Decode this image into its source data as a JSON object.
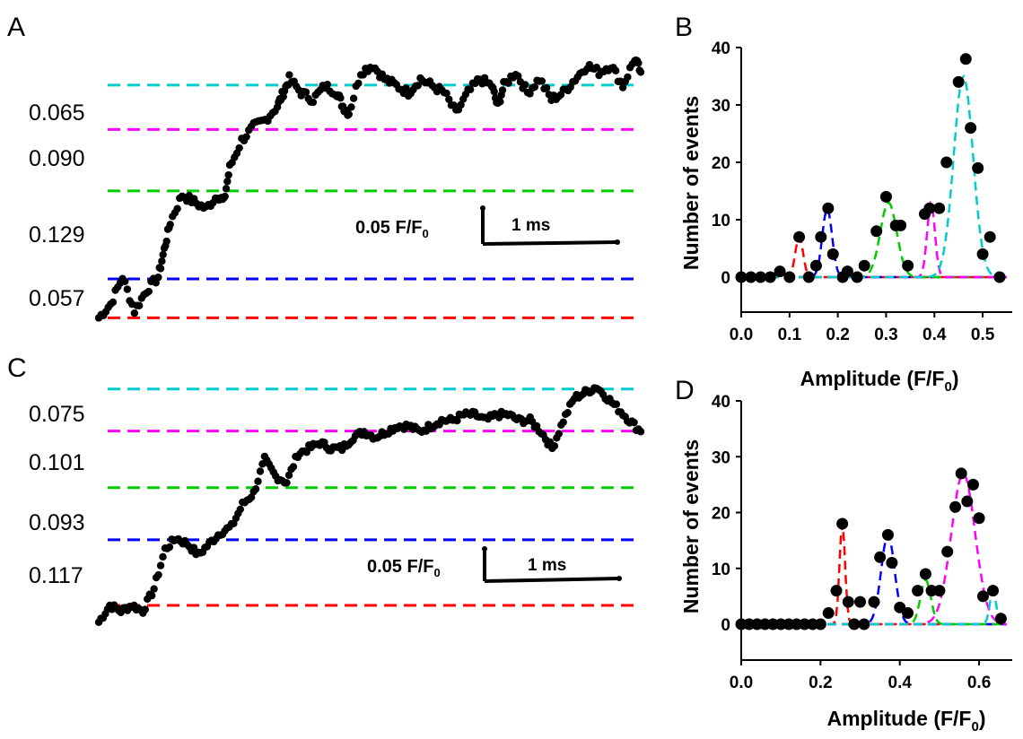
{
  "colors": {
    "red": "#ff0000",
    "blue": "#0000ff",
    "green": "#00cc00",
    "magenta": "#ff00ff",
    "cyan": "#00cccc",
    "dot": "#000000"
  },
  "panels": {
    "A": "A",
    "B": "B",
    "C": "C",
    "D": "D"
  },
  "chart_data": [
    {
      "panel": "A",
      "type": "scatter",
      "description_free": true,
      "step_levels": [
        {
          "color": "red",
          "y": 0.0
        },
        {
          "color": "blue",
          "y": 0.057
        },
        {
          "color": "green",
          "y": 0.186
        },
        {
          "color": "magenta",
          "y": 0.276
        },
        {
          "color": "cyan",
          "y": 0.341
        }
      ],
      "step_labels": [
        "0.057",
        "0.129",
        "0.090",
        "0.065"
      ],
      "scale_bar": {
        "y_label_main": "0.05 F/F",
        "y_label_sub": "0",
        "x_label": "1 ms"
      },
      "x": [
        0,
        0.1,
        0.2,
        0.3,
        0.4,
        0.5,
        0.55,
        0.6,
        0.7,
        0.8,
        0.9,
        1.0,
        1.05,
        1.1,
        1.2,
        1.3,
        1.4,
        1.5,
        1.55,
        1.6,
        1.7,
        1.8,
        1.9,
        2.0,
        2.05,
        2.1,
        2.2,
        2.3,
        2.4,
        2.5,
        2.6,
        2.7,
        2.8,
        2.9,
        3.0,
        3.1,
        3.2,
        3.3,
        3.35,
        3.4,
        3.5,
        3.6,
        3.7,
        3.8,
        3.9,
        4.0,
        4.1,
        4.2,
        4.3,
        4.4,
        4.5,
        4.55
      ],
      "y": [
        0.0,
        0.02,
        0.06,
        0.01,
        0.04,
        0.06,
        0.1,
        0.14,
        0.18,
        0.17,
        0.16,
        0.18,
        0.17,
        0.22,
        0.26,
        0.28,
        0.29,
        0.31,
        0.33,
        0.35,
        0.33,
        0.32,
        0.34,
        0.33,
        0.31,
        0.3,
        0.36,
        0.37,
        0.35,
        0.34,
        0.33,
        0.35,
        0.34,
        0.33,
        0.3,
        0.33,
        0.35,
        0.34,
        0.31,
        0.34,
        0.36,
        0.33,
        0.35,
        0.32,
        0.33,
        0.35,
        0.37,
        0.36,
        0.37,
        0.34,
        0.38,
        0.36
      ],
      "ylim": [
        -0.01,
        0.4
      ]
    },
    {
      "panel": "B",
      "type": "scatter",
      "xlabel": "Amplitude (F/F",
      "xlabel_sub": "0",
      "xlabel_close": ")",
      "ylabel": "Number of events",
      "xlim": [
        0,
        0.55
      ],
      "ylim": [
        0,
        40
      ],
      "xticks": [
        "0.0",
        "0.1",
        "0.2",
        "0.3",
        "0.4",
        "0.5"
      ],
      "yticks": [
        "0",
        "10",
        "20",
        "30",
        "40"
      ],
      "points": [
        [
          0,
          0
        ],
        [
          0.02,
          0
        ],
        [
          0.04,
          0
        ],
        [
          0.06,
          0
        ],
        [
          0.08,
          1
        ],
        [
          0.1,
          0
        ],
        [
          0.12,
          7
        ],
        [
          0.14,
          0
        ],
        [
          0.155,
          2
        ],
        [
          0.165,
          7
        ],
        [
          0.18,
          12
        ],
        [
          0.19,
          4
        ],
        [
          0.21,
          0
        ],
        [
          0.22,
          1
        ],
        [
          0.24,
          0
        ],
        [
          0.255,
          2
        ],
        [
          0.28,
          8
        ],
        [
          0.3,
          14
        ],
        [
          0.32,
          9
        ],
        [
          0.33,
          9
        ],
        [
          0.345,
          2
        ],
        [
          0.38,
          11
        ],
        [
          0.39,
          12
        ],
        [
          0.41,
          12
        ],
        [
          0.425,
          20
        ],
        [
          0.45,
          34
        ],
        [
          0.465,
          38
        ],
        [
          0.475,
          26
        ],
        [
          0.49,
          19
        ],
        [
          0.5,
          4
        ],
        [
          0.515,
          7
        ],
        [
          0.535,
          0
        ]
      ],
      "fits": [
        {
          "color": "red",
          "mu": 0.12,
          "sigma": 0.008,
          "amp": 7
        },
        {
          "color": "blue",
          "mu": 0.178,
          "sigma": 0.01,
          "amp": 12
        },
        {
          "color": "green",
          "mu": 0.305,
          "sigma": 0.017,
          "amp": 13
        },
        {
          "color": "magenta",
          "mu": 0.393,
          "sigma": 0.008,
          "amp": 13
        },
        {
          "color": "cyan",
          "mu": 0.46,
          "sigma": 0.02,
          "amp": 35
        }
      ]
    },
    {
      "panel": "C",
      "type": "scatter",
      "step_levels": [
        {
          "color": "red",
          "y": 0.0
        },
        {
          "color": "blue",
          "y": 0.117
        },
        {
          "color": "green",
          "y": 0.21
        },
        {
          "color": "magenta",
          "y": 0.311
        },
        {
          "color": "cyan",
          "y": 0.386
        }
      ],
      "step_labels": [
        "0.117",
        "0.093",
        "0.101",
        "0.075"
      ],
      "scale_bar": {
        "y_label_main": "0.05 F/F",
        "y_label_sub": "0",
        "x_label": "1 ms"
      },
      "x": [
        0,
        0.1,
        0.2,
        0.3,
        0.4,
        0.5,
        0.6,
        0.7,
        0.8,
        0.9,
        1.0,
        1.1,
        1.2,
        1.3,
        1.4,
        1.5,
        1.6,
        1.7,
        1.8,
        1.9,
        2.0,
        2.1,
        2.2,
        2.3,
        2.4,
        2.5,
        2.6,
        2.7,
        2.8,
        2.9,
        3.0,
        3.1,
        3.2,
        3.3,
        3.4,
        3.5,
        3.6,
        3.7,
        3.8,
        3.9,
        4.0,
        4.1,
        4.2,
        4.3,
        4.4,
        4.5,
        4.6,
        4.7,
        4.8,
        4.9
      ],
      "y": [
        -0.03,
        0.0,
        -0.01,
        0.0,
        -0.01,
        0.03,
        0.1,
        0.12,
        0.11,
        0.09,
        0.11,
        0.13,
        0.14,
        0.18,
        0.2,
        0.26,
        0.23,
        0.22,
        0.27,
        0.28,
        0.29,
        0.28,
        0.28,
        0.3,
        0.31,
        0.3,
        0.31,
        0.32,
        0.32,
        0.31,
        0.32,
        0.33,
        0.33,
        0.34,
        0.34,
        0.33,
        0.34,
        0.34,
        0.33,
        0.33,
        0.31,
        0.28,
        0.33,
        0.37,
        0.38,
        0.39,
        0.37,
        0.35,
        0.33,
        0.31
      ],
      "ylim": [
        -0.04,
        0.4
      ]
    },
    {
      "panel": "D",
      "type": "scatter",
      "xlabel": "Amplitude (F/F",
      "xlabel_sub": "0",
      "xlabel_close": ")",
      "ylabel": "Number of events",
      "xlim": [
        0,
        0.67
      ],
      "ylim": [
        0,
        40
      ],
      "xticks": [
        "0.0",
        "0.2",
        "0.4",
        "0.6"
      ],
      "yticks": [
        "0",
        "10",
        "20",
        "30",
        "40"
      ],
      "points": [
        [
          0,
          0
        ],
        [
          0.02,
          0
        ],
        [
          0.04,
          0
        ],
        [
          0.06,
          0
        ],
        [
          0.08,
          0
        ],
        [
          0.1,
          0
        ],
        [
          0.12,
          0
        ],
        [
          0.14,
          0
        ],
        [
          0.16,
          0
        ],
        [
          0.18,
          0
        ],
        [
          0.2,
          0
        ],
        [
          0.22,
          2
        ],
        [
          0.24,
          6
        ],
        [
          0.255,
          18
        ],
        [
          0.27,
          4
        ],
        [
          0.285,
          0
        ],
        [
          0.3,
          4
        ],
        [
          0.31,
          0
        ],
        [
          0.335,
          4
        ],
        [
          0.35,
          12
        ],
        [
          0.37,
          16
        ],
        [
          0.38,
          11
        ],
        [
          0.4,
          3
        ],
        [
          0.42,
          2
        ],
        [
          0.445,
          6
        ],
        [
          0.465,
          9
        ],
        [
          0.48,
          6
        ],
        [
          0.5,
          6
        ],
        [
          0.52,
          13
        ],
        [
          0.54,
          21
        ],
        [
          0.555,
          27
        ],
        [
          0.57,
          22
        ],
        [
          0.585,
          25
        ],
        [
          0.6,
          19
        ],
        [
          0.61,
          5
        ],
        [
          0.635,
          6
        ],
        [
          0.655,
          1
        ]
      ],
      "fits": [
        {
          "color": "red",
          "mu": 0.255,
          "sigma": 0.007,
          "amp": 18
        },
        {
          "color": "blue",
          "mu": 0.37,
          "sigma": 0.017,
          "amp": 16
        },
        {
          "color": "green",
          "mu": 0.465,
          "sigma": 0.013,
          "amp": 8
        },
        {
          "color": "magenta",
          "mu": 0.56,
          "sigma": 0.03,
          "amp": 27
        },
        {
          "color": "cyan",
          "mu": 0.635,
          "sigma": 0.008,
          "amp": 6
        }
      ]
    }
  ]
}
